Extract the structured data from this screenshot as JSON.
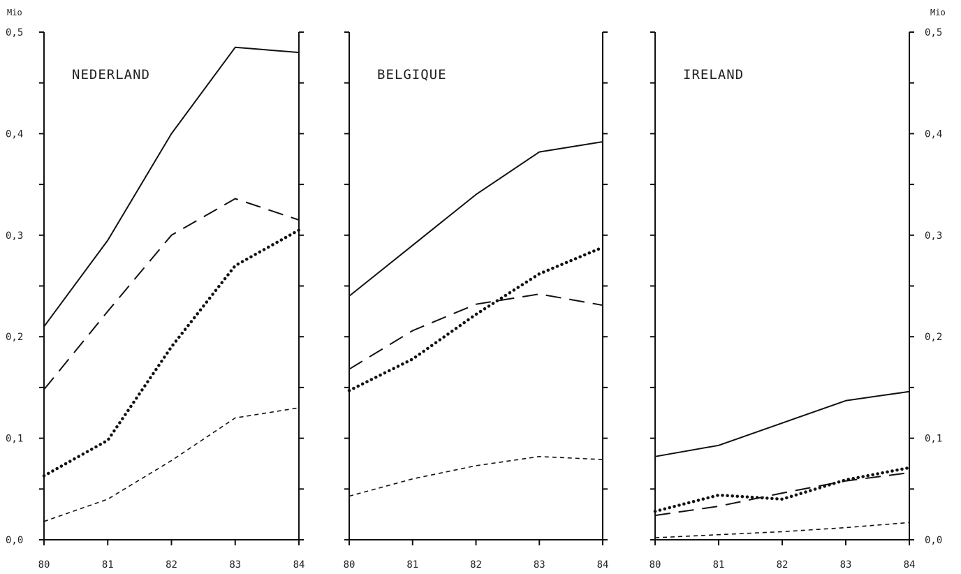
{
  "chart_data": {
    "type": "line",
    "unit_label": "Mio",
    "x": [
      "80",
      "81",
      "82",
      "83",
      "84"
    ],
    "ylim": [
      0,
      0.5
    ],
    "y_ticks": [
      "0,0",
      "0,1",
      "0,2",
      "0,3",
      "0,4",
      "0,5"
    ],
    "grid": false,
    "panels": [
      {
        "title": "NEDERLAND",
        "series": [
          {
            "style": "solid",
            "values": [
              0.21,
              0.295,
              0.4,
              0.485,
              0.48
            ]
          },
          {
            "style": "long-dash",
            "values": [
              0.148,
              0.225,
              0.3,
              0.336,
              0.315
            ]
          },
          {
            "style": "dotted",
            "values": [
              0.063,
              0.098,
              0.19,
              0.27,
              0.305
            ]
          },
          {
            "style": "short-dash",
            "values": [
              0.018,
              0.04,
              0.078,
              0.12,
              0.13
            ]
          }
        ]
      },
      {
        "title": "BELGIQUE",
        "series": [
          {
            "style": "solid",
            "values": [
              0.24,
              0.29,
              0.34,
              0.382,
              0.392
            ]
          },
          {
            "style": "long-dash",
            "values": [
              0.168,
              0.206,
              0.232,
              0.242,
              0.231
            ]
          },
          {
            "style": "dotted",
            "values": [
              0.147,
              0.178,
              0.222,
              0.262,
              0.288
            ]
          },
          {
            "style": "short-dash",
            "values": [
              0.043,
              0.06,
              0.073,
              0.082,
              0.079
            ]
          }
        ]
      },
      {
        "title": "IRELAND",
        "series": [
          {
            "style": "solid",
            "values": [
              0.082,
              0.093,
              0.115,
              0.137,
              0.146
            ]
          },
          {
            "style": "long-dash",
            "values": [
              0.024,
              0.033,
              0.046,
              0.058,
              0.066
            ]
          },
          {
            "style": "dotted",
            "values": [
              0.028,
              0.044,
              0.04,
              0.059,
              0.071
            ]
          },
          {
            "style": "short-dash",
            "values": [
              0.002,
              0.005,
              0.008,
              0.012,
              0.017
            ]
          }
        ]
      }
    ]
  }
}
